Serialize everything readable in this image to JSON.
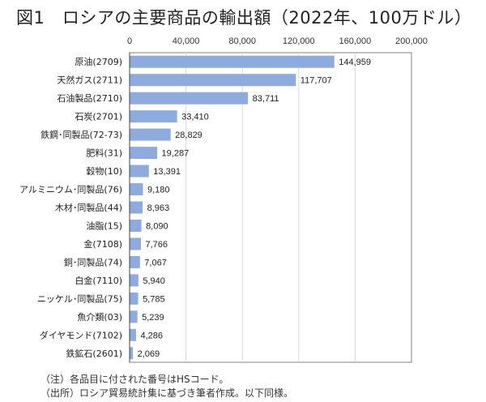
{
  "chart_data": {
    "type": "bar",
    "orientation": "horizontal",
    "title": "図1　ロシアの主要商品の輸出額（2022年、100万ドル）",
    "categories": [
      "原油(2709)",
      "天然ガス(2711)",
      "石油製品(2710)",
      "石炭(2701)",
      "鉄鋼･同製品(72-73)",
      "肥料(31)",
      "穀物(10)",
      "アルミニウム･同製品(76)",
      "木材･同製品(44)",
      "油脂(15)",
      "金(7108)",
      "銅･同製品(74)",
      "白金(7110)",
      "ニッケル･同製品(75)",
      "魚介類(03)",
      "ダイヤモンド(7102)",
      "鉄鉱石(2601)"
    ],
    "values": [
      144959,
      117707,
      83711,
      33410,
      28829,
      19287,
      13391,
      9180,
      8963,
      8090,
      7766,
      7067,
      5940,
      5785,
      5239,
      4286,
      2069
    ],
    "data_labels": [
      "144,959",
      "117,707",
      "83,711",
      "33,410",
      "28,829",
      "19,287",
      "13,391",
      "9,180",
      "8,963",
      "8,090",
      "7,766",
      "7,067",
      "5,940",
      "5,785",
      "5,239",
      "4,286",
      "2,069"
    ],
    "xticks": [
      0,
      40000,
      80000,
      120000,
      160000,
      200000
    ],
    "xtick_labels": [
      "0",
      "40,000",
      "80,000",
      "120,000",
      "160,000",
      "200,000"
    ],
    "xlim": [
      0,
      200000
    ],
    "xaxis_position": "top",
    "grid": true,
    "bar_color": "#8FAADC"
  },
  "notes": {
    "note1": "（注）各品目に付された番号はHSコード。",
    "note2": "（出所）ロシア貿易統計集に基づき筆者作成。以下同様。"
  }
}
